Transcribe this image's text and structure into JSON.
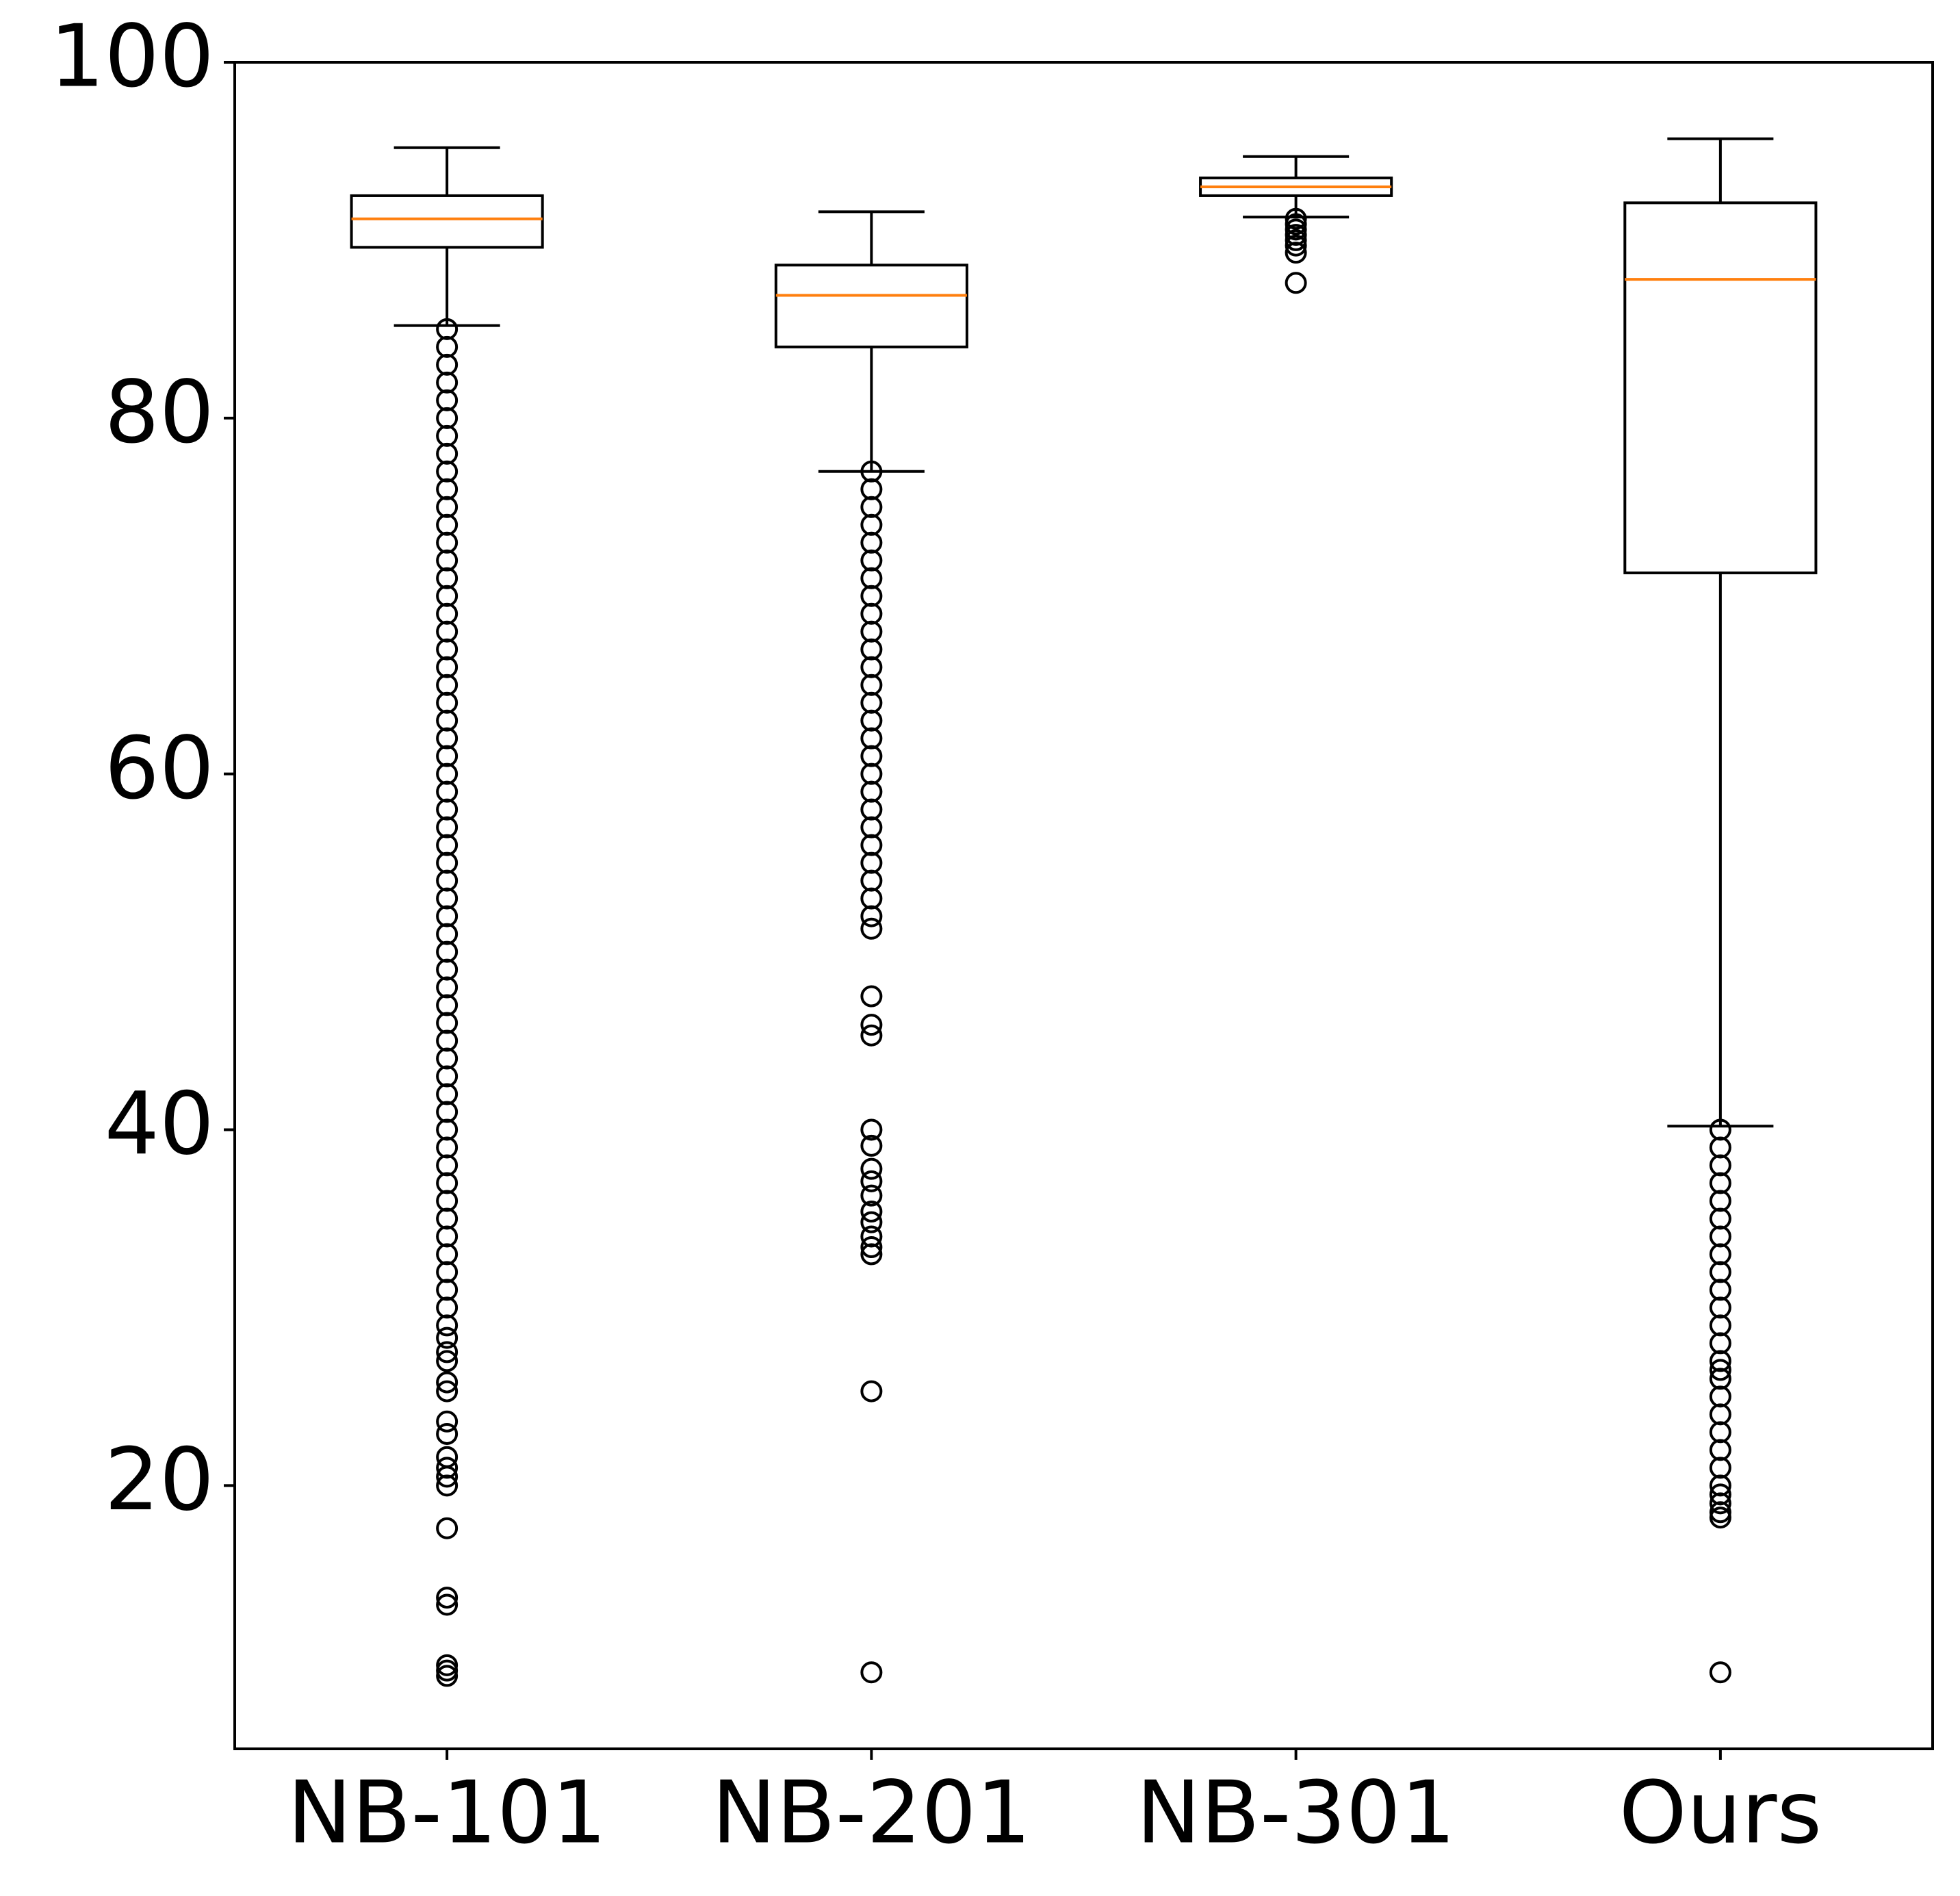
{
  "chart_data": {
    "type": "box",
    "categories": [
      "NB-101",
      "NB-201",
      "NB-301",
      "Ours"
    ],
    "boxes": [
      {
        "whislo": 85.2,
        "q1": 89.6,
        "med": 91.2,
        "q3": 92.5,
        "whishi": 95.2,
        "fliers": [
          85,
          84,
          83,
          82,
          81,
          80,
          79,
          78,
          77,
          76,
          75,
          74,
          73,
          72,
          71,
          70,
          69,
          68,
          67,
          66,
          65,
          64,
          63,
          62,
          61,
          60,
          59,
          58,
          57,
          56,
          55,
          54,
          53,
          52,
          51,
          50,
          49,
          48,
          47,
          46,
          45,
          44,
          43,
          42,
          41,
          40,
          39,
          38,
          37,
          36,
          35,
          34,
          33,
          32,
          31,
          30,
          29,
          28.3,
          27.5,
          27,
          25.8,
          25.3,
          23.6,
          22.9,
          21.6,
          21,
          20.5,
          20,
          17.6,
          13.7,
          13.3,
          9.9,
          9.6,
          9.3
        ]
      },
      {
        "whislo": 77.0,
        "q1": 84.0,
        "med": 86.9,
        "q3": 88.6,
        "whishi": 91.6,
        "fliers": [
          77,
          76,
          75,
          74,
          73,
          72,
          71,
          70,
          69,
          68,
          67,
          66,
          65,
          64,
          63,
          62,
          61,
          60,
          59,
          58,
          57,
          56,
          55,
          54,
          53,
          52,
          51.3,
          47.5,
          45.9,
          45.3,
          40,
          39.1,
          37.8,
          37.1,
          36.3,
          35.4,
          34.8,
          34,
          33.4,
          33,
          25.3,
          9.5
        ]
      },
      {
        "whislo": 91.3,
        "q1": 92.5,
        "med": 93.0,
        "q3": 93.5,
        "whishi": 94.7,
        "fliers": [
          91.2,
          90.9,
          90.6,
          90.3,
          90,
          89.7,
          89.3,
          87.6
        ]
      },
      {
        "whislo": 40.2,
        "q1": 71.3,
        "med": 87.8,
        "q3": 92.1,
        "whishi": 95.7,
        "fliers": [
          40,
          39,
          38,
          37,
          36,
          35,
          34,
          33,
          32,
          31,
          30,
          29,
          28,
          27,
          26.5,
          26,
          25,
          24,
          23,
          22,
          21,
          20,
          19.5,
          19,
          18.5,
          18.2,
          9.5
        ]
      }
    ],
    "box_color": "#000000",
    "median_color": "#ff7f0e",
    "ylim": [
      5.2,
      100
    ],
    "yticks": [
      20,
      40,
      60,
      80,
      100
    ]
  }
}
